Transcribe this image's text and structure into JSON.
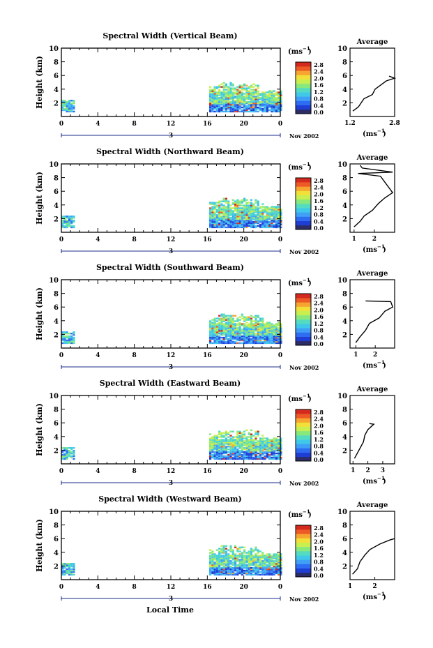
{
  "common": {
    "ylabel": "Height (km)",
    "unit": "(ms",
    "unit_exp": "−1",
    "avg_title": "Average",
    "x_ticks": [
      "0",
      "4",
      "8",
      "12",
      "16",
      "20",
      "0"
    ],
    "date_mark": "3",
    "date_label": "Nov 2002",
    "xlabel_bottom": "Local Time",
    "colorbar_ticks": [
      "2.8",
      "2.4",
      "2.0",
      "1.6",
      "1.2",
      "0.8",
      "0.4",
      "0.0"
    ],
    "colors": {
      "scale": [
        "#2c2c66",
        "#1f3fd4",
        "#2e6cf2",
        "#3fa0f6",
        "#40c8e8",
        "#55dcc0",
        "#88e87c",
        "#c8ee50",
        "#f2e03a",
        "#f7a531",
        "#ee5a26",
        "#d42a1e"
      ],
      "axis": "#000000"
    }
  },
  "chart_data": [
    {
      "type": "heatmap",
      "title": "Spectral Width (Vertical Beam)",
      "ylabel": "Height (km)",
      "xlabel": "",
      "ylim": [
        0,
        10
      ],
      "xlim": [
        0,
        24
      ],
      "avg": {
        "xticks": [
          "1.2",
          "2.8"
        ],
        "xlim": [
          1.2,
          2.8
        ],
        "profile": [
          [
            1.3,
            0.8
          ],
          [
            1.5,
            1.4
          ],
          [
            1.6,
            2.0
          ],
          [
            1.7,
            2.6
          ],
          [
            2.0,
            3.2
          ],
          [
            2.1,
            4.0
          ],
          [
            2.3,
            4.6
          ],
          [
            2.5,
            5.2
          ],
          [
            2.8,
            5.6
          ],
          [
            2.6,
            5.9
          ]
        ]
      }
    },
    {
      "type": "heatmap",
      "title": "Spectral Width (Northward Beam)",
      "ylabel": "Height (km)",
      "xlabel": "",
      "ylim": [
        0,
        10
      ],
      "xlim": [
        0,
        24
      ],
      "avg": {
        "xticks": [
          "1",
          "2"
        ],
        "xlim": [
          0.8,
          3.0
        ],
        "profile": [
          [
            1.0,
            0.8
          ],
          [
            1.3,
            1.6
          ],
          [
            1.5,
            2.4
          ],
          [
            1.9,
            3.2
          ],
          [
            2.2,
            4.2
          ],
          [
            2.5,
            5.0
          ],
          [
            2.9,
            5.8
          ],
          [
            2.3,
            8.2
          ],
          [
            1.2,
            8.6
          ],
          [
            2.9,
            8.8
          ],
          [
            1.4,
            9.4
          ],
          [
            1.3,
            9.8
          ]
        ]
      }
    },
    {
      "type": "heatmap",
      "title": "Spectral Width (Southward Beam)",
      "ylabel": "Height (km)",
      "xlabel": "",
      "ylim": [
        0,
        10
      ],
      "xlim": [
        0,
        24
      ],
      "avg": {
        "xticks": [
          "1",
          "2"
        ],
        "xlim": [
          0.7,
          3.0
        ],
        "profile": [
          [
            1.0,
            0.8
          ],
          [
            1.2,
            1.6
          ],
          [
            1.5,
            2.6
          ],
          [
            1.7,
            3.6
          ],
          [
            2.2,
            4.4
          ],
          [
            2.5,
            5.4
          ],
          [
            2.9,
            6.0
          ],
          [
            2.8,
            6.8
          ],
          [
            1.5,
            6.9
          ]
        ]
      }
    },
    {
      "type": "heatmap",
      "title": "Spectral Width (Eastward Beam)",
      "ylabel": "Height (km)",
      "xlabel": "",
      "ylim": [
        0,
        10
      ],
      "xlim": [
        0,
        24
      ],
      "avg": {
        "xticks": [
          "1",
          "2",
          "3"
        ],
        "xlim": [
          0.8,
          3.8
        ],
        "profile": [
          [
            1.1,
            0.8
          ],
          [
            1.3,
            1.6
          ],
          [
            1.5,
            2.4
          ],
          [
            1.7,
            3.2
          ],
          [
            1.8,
            4.2
          ],
          [
            2.0,
            5.0
          ],
          [
            2.4,
            5.8
          ],
          [
            2.1,
            5.9
          ]
        ]
      }
    },
    {
      "type": "heatmap",
      "title": "Spectral Width (Westward Beam)",
      "ylabel": "Height (km)",
      "xlabel": "Local Time",
      "ylim": [
        0,
        10
      ],
      "xlim": [
        0,
        24
      ],
      "avg": {
        "xticks": [
          "1",
          "2"
        ],
        "xlim": [
          1.0,
          2.8
        ],
        "profile": [
          [
            1.1,
            0.8
          ],
          [
            1.3,
            1.6
          ],
          [
            1.4,
            2.6
          ],
          [
            1.6,
            3.6
          ],
          [
            1.8,
            4.4
          ],
          [
            2.2,
            5.2
          ],
          [
            2.6,
            5.8
          ],
          [
            2.8,
            6.0
          ]
        ]
      }
    }
  ]
}
